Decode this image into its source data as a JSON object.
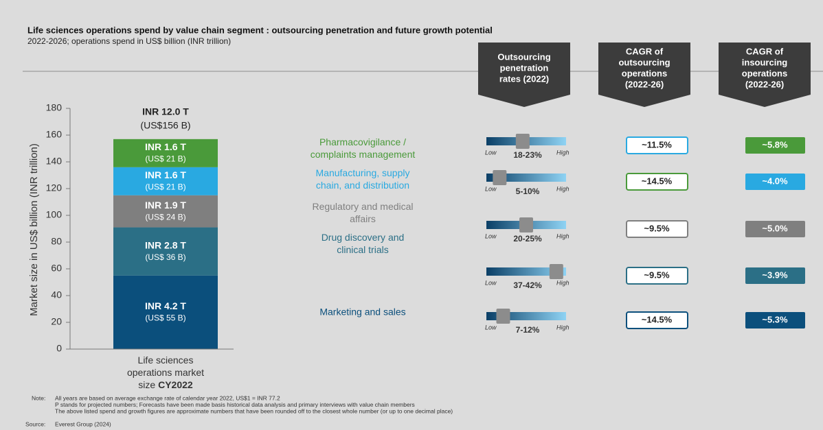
{
  "chart_data": {
    "type": "stacked_bar",
    "title": "Life sciences operations spend by value chain segment : outsourcing penetration and future growth potential",
    "subtitle": "2022-2026; operations spend in US$ billion (INR trillion)",
    "ylabel": "Market size in US$ billion (INR trillion)",
    "categories": [
      "Life sciences operations market size"
    ],
    "period": "CY2022",
    "total_labels": [
      "INR 12.0 T",
      "(US$156 B)"
    ],
    "ylim": [
      0,
      180
    ],
    "yticks": [
      0,
      20,
      40,
      60,
      80,
      100,
      120,
      140,
      160,
      180
    ],
    "series": [
      {
        "name": "Marketing and sales",
        "color": "#0b4f7c",
        "values": [
          55
        ],
        "value_labels": [
          "(US$ 55 B)"
        ],
        "inr_labels": [
          "INR 4.2 T"
        ]
      },
      {
        "name": "Drug discovery and clinical trials",
        "color": "#2b6f86",
        "values": [
          36
        ],
        "value_labels": [
          "(US$ 36 B)"
        ],
        "inr_labels": [
          "INR 2.8 T"
        ]
      },
      {
        "name": "Regulatory and medical affairs",
        "color": "#7f7f7f",
        "values": [
          24
        ],
        "value_labels": [
          "(US$ 24 B)"
        ],
        "inr_labels": [
          "INR 1.9 T"
        ]
      },
      {
        "name": "Manufacturing, supply chain, and distribution",
        "color": "#29a9e1",
        "values": [
          21
        ],
        "value_labels": [
          "(US$ 21 B)"
        ],
        "inr_labels": [
          "INR 1.6 T"
        ]
      },
      {
        "name": "Pharmacovigilance / complaints management",
        "color": "#4a9a3a",
        "values": [
          21
        ],
        "value_labels": [
          "(US$ 21 B)"
        ],
        "inr_labels": [
          "INR 1.6 T"
        ]
      }
    ]
  },
  "table": {
    "headers": [
      [
        "Outsourcing",
        "penetration",
        "rates (2022)"
      ],
      [
        "CAGR of",
        "outsourcing",
        "operations",
        "(2022-26)"
      ],
      [
        "CAGR of",
        "insourcing",
        "operations",
        "(2022-26)"
      ]
    ],
    "low_label": "Low",
    "high_label": "High",
    "scale_lim": [
      0,
      45
    ],
    "rows": [
      {
        "low": 18,
        "high": 23,
        "range_label": "18-23%",
        "outsourcing": "~11.5%",
        "outsourcing_color": "#29a9e1",
        "insourcing": "~5.8%",
        "insourcing_color": "#4a9a3a"
      },
      {
        "low": 5,
        "high": 10,
        "range_label": "5-10%",
        "outsourcing": "~14.5%",
        "outsourcing_color": "#4a9a3a",
        "insourcing": "~4.0%",
        "insourcing_color": "#29a9e1"
      },
      {
        "low": 20,
        "high": 25,
        "range_label": "20-25%",
        "outsourcing": "~9.5%",
        "outsourcing_color": "#7f7f7f",
        "insourcing": "~5.0%",
        "insourcing_color": "#7f7f7f"
      },
      {
        "low": 37,
        "high": 42,
        "range_label": "37-42%",
        "outsourcing": "~9.5%",
        "outsourcing_color": "#2b6f86",
        "insourcing": "~3.9%",
        "insourcing_color": "#2b6f86"
      },
      {
        "low": 7,
        "high": 12,
        "range_label": "7-12%",
        "outsourcing": "~14.5%",
        "outsourcing_color": "#0b4f7c",
        "insourcing": "~5.3%",
        "insourcing_color": "#0b4f7c"
      }
    ]
  },
  "notes": {
    "note_label": "Note:",
    "lines": [
      "All years are based on average exchange rate of calendar year 2022, US$1 = INR 77.2",
      "P stands for projected numbers; Forecasts have been made basis historical data analysis and primary interviews with value chain members",
      "The above listed spend and growth figures are approximate numbers that have been rounded off to the closest whole number (or up to one decimal place)"
    ],
    "source_label": "Source:",
    "source": "Everest Group (2024)"
  }
}
